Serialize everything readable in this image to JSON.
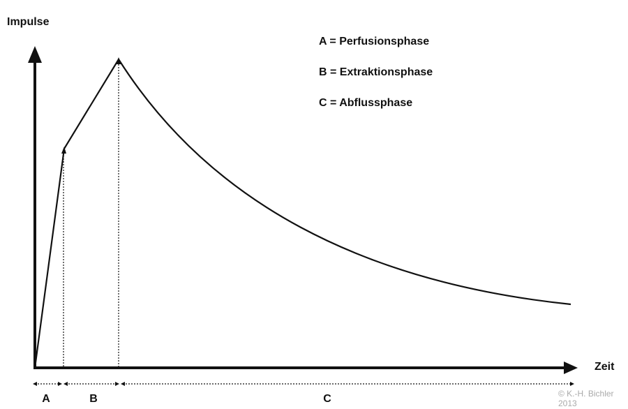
{
  "axes": {
    "y_label": "Impulse",
    "x_label": "Zeit"
  },
  "legend": [
    "A = Perfusionsphase",
    "B = Extraktionsphase",
    "C = Abflussphase"
  ],
  "phases": [
    "A",
    "B",
    "C"
  ],
  "copyright": [
    "© K.-H. Bichler",
    "2013"
  ]
}
